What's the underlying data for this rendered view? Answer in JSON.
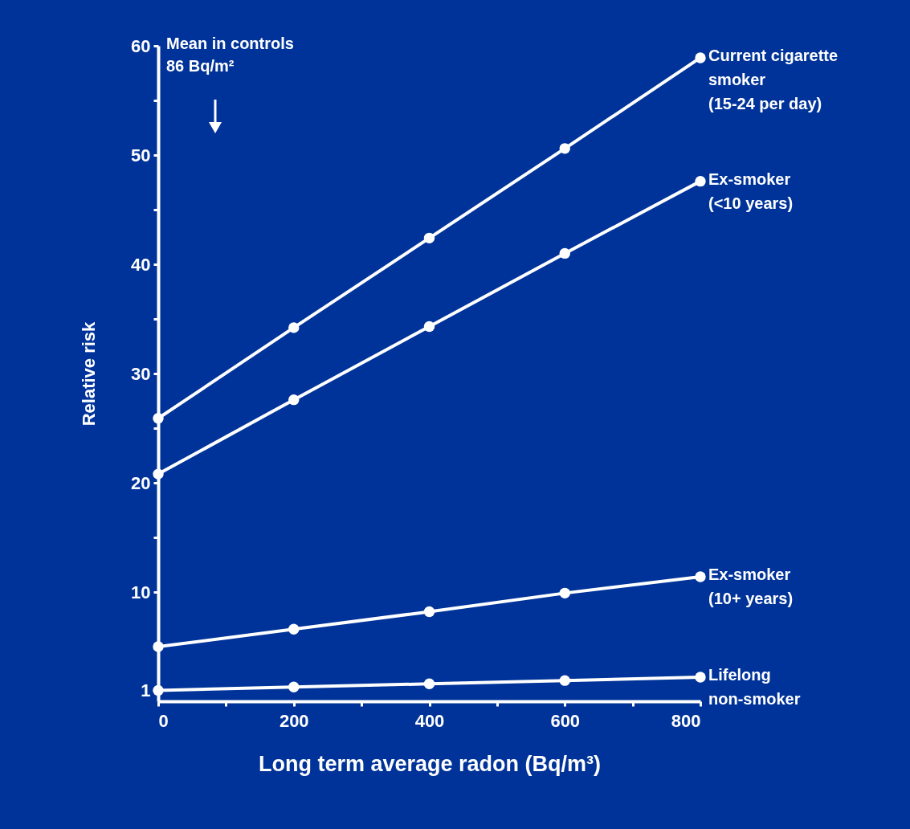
{
  "chart_data": {
    "type": "line",
    "xlabel": "Long term average radon (Bq/m³)",
    "ylabel": "Relative risk",
    "x": [
      0,
      200,
      400,
      600,
      800
    ],
    "xlim": [
      0,
      800
    ],
    "xticks": [
      0,
      {
        "value": 100,
        "label": null
      },
      200,
      {
        "value": 300,
        "label": null
      },
      400,
      {
        "value": 500,
        "label": null
      },
      600,
      {
        "value": 700,
        "label": null
      },
      800
    ],
    "ylim": [
      0,
      60
    ],
    "yticks": [
      1,
      {
        "value": 5,
        "label": null
      },
      10,
      {
        "value": 15,
        "label": null
      },
      20,
      {
        "value": 25,
        "label": null
      },
      30,
      {
        "value": 35,
        "label": null
      },
      40,
      {
        "value": 45,
        "label": null
      },
      50,
      {
        "value": 55,
        "label": null
      },
      60
    ],
    "grid": false,
    "legend": false,
    "marker": "circle",
    "series": [
      {
        "name": "Current cigarette smoker (15-24 per day)",
        "color": "#ffffff",
        "values": [
          25.9,
          34.2,
          42.4,
          50.6,
          58.9
        ]
      },
      {
        "name": "Ex-smoker (<10 years)",
        "color": "#ffffff",
        "values": [
          20.8,
          27.6,
          34.3,
          41.0,
          47.6
        ]
      },
      {
        "name": "Ex-smoker (10+ years)",
        "color": "#ffffff",
        "values": [
          5.0,
          6.6,
          8.2,
          9.9,
          11.4
        ]
      },
      {
        "name": "Lifelong non-smoker",
        "color": "#ffffff",
        "values": [
          1.0,
          1.3,
          1.6,
          1.9,
          2.2
        ]
      }
    ],
    "annotations": [
      "Mean in controls 86 Bq/m²"
    ]
  }
}
